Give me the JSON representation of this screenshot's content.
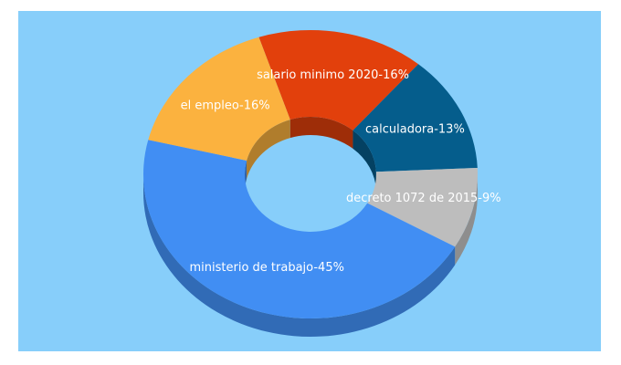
{
  "chart_data": {
    "type": "donut",
    "categories": [
      "salario minimo 2020-16%",
      "calculadora-13%",
      "decreto 1072 de 2015-9%",
      "ministerio de trabajo-45%",
      "el empleo-16%"
    ],
    "values": [
      16,
      13,
      9,
      45,
      16
    ],
    "colors": [
      "#e2400c",
      "#055d8c",
      "#bdbdbd",
      "#418ef3",
      "#fbb23f"
    ]
  }
}
